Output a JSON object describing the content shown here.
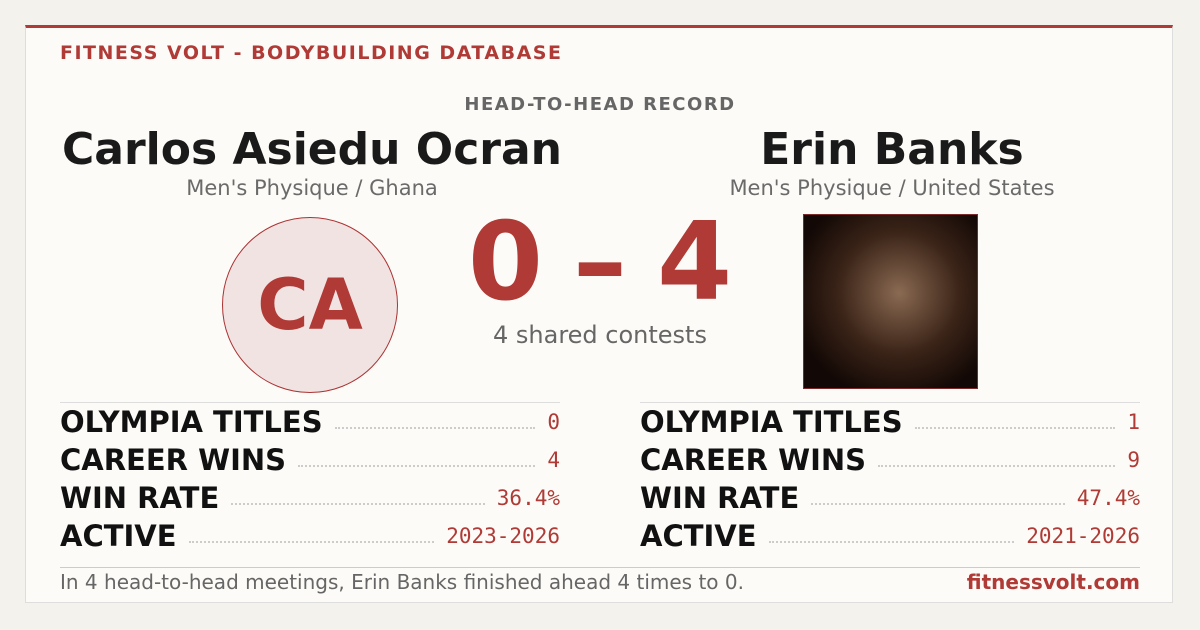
{
  "header": {
    "brand": "FITNESS VOLT - BODYBUILDING DATABASE"
  },
  "matchup": {
    "label": "HEAD-TO-HEAD RECORD",
    "score": {
      "left": 0,
      "separator": "–",
      "right": 4
    },
    "shared": "4 shared contests"
  },
  "left": {
    "name": "Carlos Asiedu Ocran",
    "division": "Men's Physique / Ghana",
    "initials": "CA",
    "stats": [
      {
        "label": "OLYMPIA TITLES",
        "value": "0"
      },
      {
        "label": "CAREER WINS",
        "value": "4"
      },
      {
        "label": "WIN RATE",
        "value": "36.4%"
      },
      {
        "label": "ACTIVE",
        "value": "2023-2026"
      }
    ]
  },
  "right": {
    "name": "Erin Banks",
    "division": "Men's Physique / United States",
    "stats": [
      {
        "label": "OLYMPIA TITLES",
        "value": "1"
      },
      {
        "label": "CAREER WINS",
        "value": "9"
      },
      {
        "label": "WIN RATE",
        "value": "47.4%"
      },
      {
        "label": "ACTIVE",
        "value": "2021-2026"
      }
    ]
  },
  "footer": {
    "summary": "In 4 head-to-head meetings, Erin Banks finished ahead 4 times to 0.",
    "site": "fitnessvolt.com"
  }
}
